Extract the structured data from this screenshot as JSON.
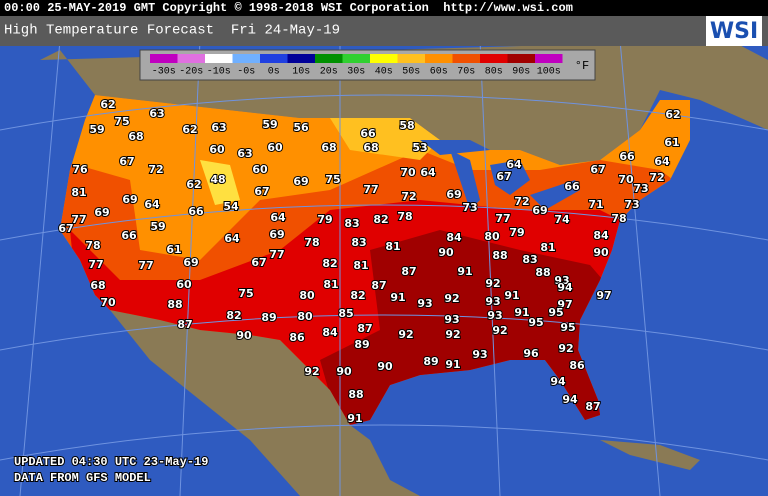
{
  "header": {
    "text": "00:00 25-MAY-2019 GMT Copyright © 1998-2018 WSI Corporation  http://www.wsi.com"
  },
  "title": {
    "text": "High Temperature Forecast  Fri 24-May-19"
  },
  "logo": {
    "text": "WSI"
  },
  "legend": {
    "unit": "°F",
    "items": [
      {
        "label": "-30s",
        "color": "#c000c0"
      },
      {
        "label": "-20s",
        "color": "#e070e0"
      },
      {
        "label": "-10s",
        "color": "#ffffff"
      },
      {
        "label": "-0s",
        "color": "#70b0ff"
      },
      {
        "label": "0s",
        "color": "#2040e0"
      },
      {
        "label": "10s",
        "color": "#000098"
      },
      {
        "label": "20s",
        "color": "#009000"
      },
      {
        "label": "30s",
        "color": "#30d030"
      },
      {
        "label": "40s",
        "color": "#ffff00"
      },
      {
        "label": "50s",
        "color": "#ffc020"
      },
      {
        "label": "60s",
        "color": "#ff9000"
      },
      {
        "label": "70s",
        "color": "#f05000"
      },
      {
        "label": "80s",
        "color": "#e00000"
      },
      {
        "label": "90s",
        "color": "#a00000"
      },
      {
        "label": "100s",
        "color": "#c000c0"
      }
    ]
  },
  "temperatures": [
    62,
    75,
    63,
    59,
    68,
    62,
    63,
    59,
    56,
    66,
    58,
    60,
    63,
    60,
    68,
    68,
    53,
    67,
    72,
    60,
    76,
    62,
    48,
    75,
    69,
    70,
    64,
    64,
    67,
    62,
    61,
    66,
    64,
    67,
    70,
    72,
    73,
    66,
    77,
    72,
    69,
    67,
    81,
    69,
    64,
    54,
    66,
    73,
    72,
    69,
    71,
    73,
    77,
    69,
    59,
    64,
    79,
    83,
    82,
    78,
    77,
    74,
    78,
    67,
    66,
    64,
    69,
    84,
    80,
    79,
    84,
    78,
    61,
    78,
    83,
    81,
    81,
    90,
    88,
    90,
    77,
    77,
    69,
    67,
    77,
    82,
    81,
    87,
    91,
    83,
    88,
    93,
    60,
    68,
    81,
    87,
    92,
    94,
    97,
    75,
    80,
    82,
    91,
    93,
    92,
    93,
    91,
    97,
    70,
    88,
    85,
    82,
    89,
    80,
    91,
    95,
    93,
    93,
    87,
    84,
    87,
    92,
    95,
    95,
    90,
    86,
    89,
    92,
    92,
    92,
    93,
    96,
    86,
    90,
    89,
    91,
    92,
    90,
    94,
    88,
    94,
    87,
    91
  ],
  "footer": {
    "updated": "UPDATED 04:30 UTC 23-May-19",
    "source": "DATA FROM GFS MODEL"
  }
}
